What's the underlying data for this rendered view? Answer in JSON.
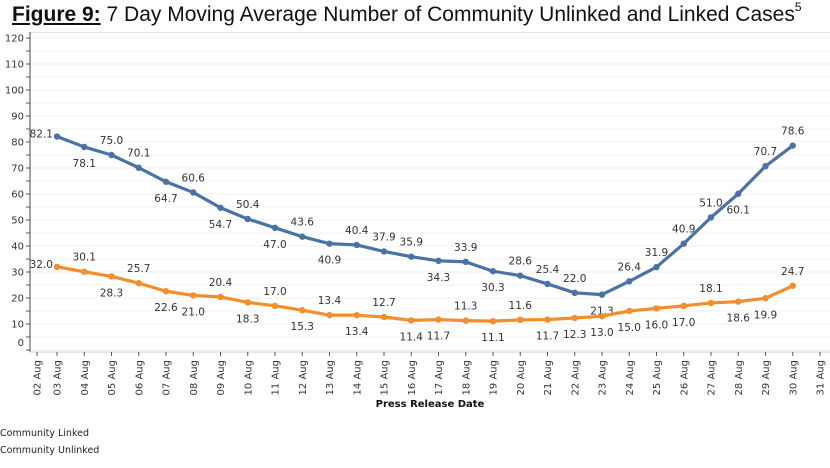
{
  "figure": {
    "label": "Figure 9:",
    "title": "7 Day Moving Average Number of Community Unlinked and Linked Cases",
    "superscript": "5"
  },
  "chart_data": {
    "type": "line",
    "title": "Figure 9: 7 Day Moving Average Number of Community Unlinked and Linked Cases",
    "xlabel": "Press Release Date",
    "ylabel": "",
    "ylim": [
      0,
      120
    ],
    "yticks": [
      0,
      10,
      20,
      30,
      40,
      50,
      60,
      70,
      80,
      90,
      100,
      110,
      120
    ],
    "grid": true,
    "legend_position": "bottom-left",
    "categories": [
      "02 Aug",
      "03 Aug",
      "04 Aug",
      "05 Aug",
      "06 Aug",
      "07 Aug",
      "08 Aug",
      "09 Aug",
      "10 Aug",
      "11 Aug",
      "12 Aug",
      "13 Aug",
      "14 Aug",
      "15 Aug",
      "16 Aug",
      "17 Aug",
      "18 Aug",
      "19 Aug",
      "20 Aug",
      "21 Aug",
      "22 Aug",
      "23 Aug",
      "24 Aug",
      "25 Aug",
      "26 Aug",
      "27 Aug",
      "28 Aug",
      "29 Aug",
      "30 Aug",
      "31 Aug"
    ],
    "series": [
      {
        "name": "Community Linked",
        "color": "#4a72a6",
        "start_index": 1,
        "values": [
          82.1,
          78.1,
          75.0,
          70.1,
          64.7,
          60.6,
          54.7,
          50.4,
          47.0,
          43.6,
          40.9,
          40.4,
          37.9,
          35.9,
          34.3,
          33.9,
          30.3,
          28.6,
          25.4,
          22.0,
          21.3,
          26.4,
          31.9,
          40.9,
          51.0,
          60.1,
          70.7,
          78.6
        ],
        "label_pos": [
          "left",
          "below",
          "above",
          "above",
          "below",
          "above",
          "below",
          "above",
          "below",
          "above",
          "below",
          "above",
          "above",
          "above",
          "below",
          "above",
          "below",
          "above",
          "above",
          "above",
          "below",
          "above",
          "above",
          "above",
          "above",
          "below",
          "above",
          "above"
        ]
      },
      {
        "name": "Community Unlinked",
        "color": "#f28e2b",
        "start_index": 1,
        "values": [
          32.0,
          30.1,
          28.3,
          25.7,
          22.6,
          21.0,
          20.4,
          18.3,
          17.0,
          15.3,
          13.4,
          13.4,
          12.7,
          11.4,
          11.7,
          11.3,
          11.1,
          11.6,
          11.7,
          12.3,
          13.0,
          15.0,
          16.0,
          17.0,
          18.1,
          18.6,
          19.9,
          24.7
        ],
        "label_pos": [
          "left",
          "above",
          "below",
          "above",
          "below",
          "below",
          "above",
          "below",
          "above",
          "below",
          "above",
          "below",
          "above",
          "below",
          "below",
          "above",
          "below",
          "above",
          "below",
          "below",
          "below",
          "below",
          "below",
          "below",
          "above",
          "below",
          "below",
          "above"
        ]
      }
    ]
  },
  "legend": {
    "items": [
      {
        "label": "Community Linked"
      },
      {
        "label": "Community Unlinked"
      }
    ]
  }
}
